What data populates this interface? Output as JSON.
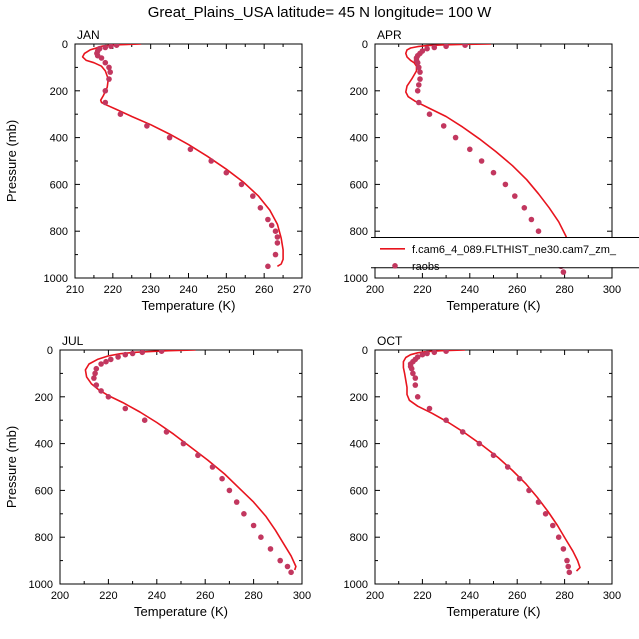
{
  "figure": {
    "title": "Great_Plains_USA  latitude= 45 N longitude= 100 W"
  },
  "legend": {
    "model_label": "f.cam6_4_089.FLTHIST_ne30.cam7_zm_",
    "obs_label": "raobs"
  },
  "colors": {
    "model_line": "#e8141e",
    "obs_marker": "#c2375f"
  },
  "chart_data": [
    {
      "type": "scatter",
      "panel": "JAN",
      "xlabel": "Temperature (K)",
      "ylabel": "Pressure (mb)",
      "xlim": [
        210,
        270
      ],
      "ylim": [
        1000,
        0
      ],
      "xticks": [
        210,
        220,
        230,
        240,
        250,
        260,
        270
      ],
      "yticks": [
        0,
        200,
        400,
        600,
        800,
        1000
      ],
      "series": [
        {
          "kind": "line",
          "x": [
            227.5,
            222.0,
            219.5,
            217.5,
            216.5,
            215.5,
            214.0,
            212.5,
            212.0,
            213.0,
            215.0,
            217.0,
            218.0,
            218.8,
            218.5,
            217.5,
            216.8,
            217.0,
            218.5,
            221.0,
            225.0,
            230.0,
            235.0,
            240.0,
            245.0,
            250.0,
            254.5,
            258.5,
            261.5,
            263.5,
            264.5,
            265.0,
            265.0,
            264.5,
            263.5
          ],
          "y": [
            0,
            3,
            5,
            8,
            12,
            18,
            25,
            40,
            55,
            70,
            80,
            95,
            115,
            150,
            185,
            220,
            240,
            250,
            262,
            280,
            310,
            345,
            385,
            430,
            480,
            535,
            590,
            650,
            710,
            770,
            830,
            880,
            920,
            940,
            950
          ]
        },
        {
          "kind": "points",
          "x": [
            221.0,
            219.5,
            218.0,
            216.5,
            216.0,
            215.8,
            216.0,
            217.0,
            218.0,
            219.0,
            219.3,
            219.0,
            218.0,
            218.0,
            222.0,
            229.0,
            235.0,
            240.5,
            246.0,
            250.0,
            254.0,
            257.0,
            259.0,
            261.0,
            262.0,
            263.0,
            263.5,
            263.5,
            263.0,
            261.0
          ],
          "y": [
            5,
            10,
            15,
            20,
            30,
            40,
            50,
            60,
            80,
            100,
            120,
            150,
            200,
            250,
            300,
            350,
            400,
            450,
            500,
            550,
            600,
            650,
            700,
            750,
            775,
            800,
            825,
            850,
            900,
            950
          ]
        }
      ]
    },
    {
      "type": "scatter",
      "panel": "APR",
      "xlabel": "Temperature (K)",
      "ylabel": "",
      "xlim": [
        200,
        300
      ],
      "ylim": [
        1000,
        0
      ],
      "xticks": [
        200,
        220,
        240,
        260,
        280,
        300
      ],
      "yticks": [
        0,
        200,
        400,
        600,
        800,
        1000
      ],
      "series": [
        {
          "kind": "line",
          "x": [
            249.0,
            236.0,
            228.0,
            222.0,
            218.0,
            215.0,
            213.5,
            213.0,
            213.5,
            215.0,
            216.5,
            217.5,
            217.5,
            215.5,
            213.5,
            213.0,
            214.0,
            217.0,
            223.0,
            230.0,
            237.0,
            244.0,
            251.0,
            258.0,
            264.0,
            269.0,
            273.5,
            277.5,
            280.5,
            282.5,
            283.5,
            283.0,
            281.5
          ],
          "y": [
            0,
            2,
            4,
            7,
            11,
            17,
            25,
            40,
            55,
            70,
            80,
            95,
            115,
            150,
            180,
            205,
            225,
            245,
            275,
            310,
            355,
            405,
            460,
            520,
            580,
            640,
            700,
            760,
            820,
            870,
            910,
            935,
            950
          ]
        },
        {
          "kind": "points",
          "x": [
            238.0,
            230.0,
            225.0,
            222.0,
            220.0,
            219.0,
            218.0,
            217.5,
            217.5,
            218.0,
            218.5,
            219.0,
            219.0,
            218.5,
            218.0,
            218.5,
            223.0,
            229.0,
            234.0,
            240.0,
            245.0,
            250.0,
            255.0,
            259.0,
            263.0,
            266.0,
            269.0,
            272.0,
            275.0,
            276.5,
            278.5,
            279.5
          ],
          "y": [
            5,
            10,
            15,
            20,
            30,
            40,
            50,
            60,
            70,
            80,
            100,
            120,
            150,
            175,
            200,
            250,
            300,
            350,
            400,
            450,
            500,
            550,
            600,
            650,
            700,
            750,
            800,
            850,
            900,
            925,
            950,
            975
          ]
        }
      ]
    },
    {
      "type": "scatter",
      "panel": "JUL",
      "xlabel": "Temperature (K)",
      "ylabel": "Pressure (mb)",
      "xlim": [
        200,
        300
      ],
      "ylim": [
        1000,
        0
      ],
      "xticks": [
        200,
        220,
        240,
        260,
        280,
        300
      ],
      "yticks": [
        0,
        200,
        400,
        600,
        800,
        1000
      ],
      "series": [
        {
          "kind": "line",
          "x": [
            256.0,
            245.0,
            238.0,
            231.0,
            225.0,
            220.0,
            215.5,
            212.0,
            210.5,
            211.0,
            213.0,
            216.0,
            220.0,
            226.0,
            233.0,
            240.0,
            247.0,
            254.0,
            261.0,
            268.0,
            274.0,
            280.0,
            285.0,
            289.0,
            292.5,
            295.5,
            297.5,
            297.0
          ],
          "y": [
            0,
            3,
            6,
            10,
            16,
            25,
            40,
            60,
            85,
            115,
            145,
            170,
            195,
            225,
            265,
            310,
            360,
            415,
            470,
            530,
            590,
            650,
            710,
            770,
            830,
            880,
            925,
            940
          ]
        },
        {
          "kind": "points",
          "x": [
            242.0,
            234.0,
            230.0,
            227.0,
            224.0,
            221.0,
            219.0,
            217.0,
            215.0,
            214.5,
            214.0,
            215.0,
            217.0,
            220.0,
            227.0,
            235.0,
            244.0,
            251.0,
            257.0,
            263.0,
            267.0,
            270.0,
            273.0,
            276.0,
            280.0,
            283.0,
            287.0,
            291.0,
            294.0,
            295.5
          ],
          "y": [
            5,
            10,
            15,
            20,
            30,
            40,
            50,
            60,
            80,
            100,
            120,
            150,
            175,
            200,
            250,
            300,
            350,
            400,
            450,
            500,
            550,
            600,
            650,
            700,
            750,
            800,
            850,
            900,
            925,
            950
          ]
        }
      ]
    },
    {
      "type": "scatter",
      "panel": "OCT",
      "xlabel": "Temperature (K)",
      "ylabel": "",
      "xlim": [
        200,
        300
      ],
      "ylim": [
        1000,
        0
      ],
      "xticks": [
        200,
        220,
        240,
        260,
        280,
        300
      ],
      "yticks": [
        0,
        200,
        400,
        600,
        800,
        1000
      ],
      "series": [
        {
          "kind": "line",
          "x": [
            238.0,
            228.0,
            222.0,
            218.0,
            215.0,
            213.0,
            212.0,
            212.0,
            212.5,
            213.0,
            213.5,
            213.5,
            214.5,
            218.0,
            224.0,
            231.0,
            238.0,
            245.0,
            252.0,
            258.0,
            263.5,
            268.5,
            273.0,
            277.0,
            280.5,
            283.5,
            285.5,
            286.5,
            285.0
          ],
          "y": [
            0,
            3,
            7,
            12,
            20,
            32,
            50,
            75,
            100,
            130,
            160,
            190,
            215,
            240,
            270,
            310,
            355,
            405,
            460,
            515,
            570,
            630,
            690,
            750,
            810,
            860,
            900,
            930,
            945
          ]
        },
        {
          "kind": "points",
          "x": [
            230.0,
            225.0,
            222.0,
            220.0,
            218.0,
            217.0,
            216.0,
            215.0,
            215.0,
            215.5,
            216.0,
            217.0,
            217.0,
            218.0,
            223.0,
            230.0,
            237.0,
            244.0,
            250.0,
            256.0,
            261.0,
            265.0,
            269.0,
            272.0,
            275.0,
            277.5,
            279.5,
            281.0,
            281.5,
            282.0
          ],
          "y": [
            5,
            10,
            15,
            20,
            30,
            40,
            50,
            60,
            70,
            80,
            100,
            120,
            150,
            200,
            250,
            300,
            350,
            400,
            450,
            500,
            550,
            600,
            650,
            700,
            750,
            800,
            850,
            900,
            925,
            950
          ]
        }
      ]
    }
  ]
}
